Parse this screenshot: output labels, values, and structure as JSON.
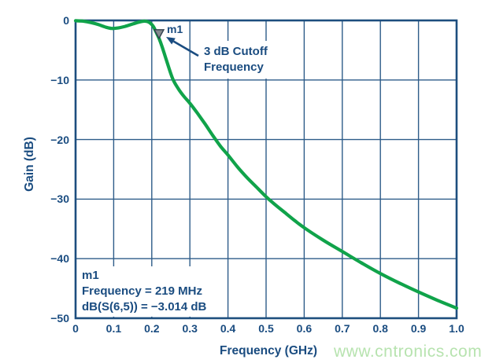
{
  "watermark": {
    "text": "www.cntronics.com",
    "color": "#b7e3af"
  },
  "colors": {
    "axis_text": "#1a4c80",
    "grid": "#2e5c89",
    "border": "#1d4e7e",
    "curve": "#10a34a",
    "marker_fill": "#85898e",
    "marker_stroke": "#30404f",
    "arrow": "#1a4c80",
    "annotation_bg": "#ffffff"
  },
  "chart_data": {
    "type": "line",
    "title": "",
    "xlabel": "Frequency (GHz)",
    "ylabel": "Gain (dB)",
    "xlim": [
      0,
      1
    ],
    "ylim": [
      -50,
      0
    ],
    "grid": true,
    "legend": "none",
    "x_tick_values": [
      0,
      0.1,
      0.2,
      0.3,
      0.4,
      0.5,
      0.6,
      0.7,
      0.8,
      0.9,
      1.0
    ],
    "x_tick_labels": [
      "0",
      "0.1",
      "0.2",
      "0.3",
      "0.4",
      "0.5",
      "0.6",
      "0.7",
      "0.8",
      "0.9",
      "1.0"
    ],
    "y_tick_values": [
      0,
      -10,
      -20,
      -30,
      -40,
      -50
    ],
    "y_tick_labels": [
      "0",
      "−10",
      "−20",
      "−30",
      "−40",
      "−50"
    ],
    "series": [
      {
        "name": "dB(S(6,5))",
        "color": "#10a34a",
        "points": [
          [
            0.0,
            -0.05
          ],
          [
            0.02,
            -0.12
          ],
          [
            0.04,
            -0.35
          ],
          [
            0.06,
            -0.7
          ],
          [
            0.08,
            -1.15
          ],
          [
            0.095,
            -1.35
          ],
          [
            0.11,
            -1.28
          ],
          [
            0.13,
            -1.0
          ],
          [
            0.15,
            -0.6
          ],
          [
            0.165,
            -0.3
          ],
          [
            0.178,
            -0.13
          ],
          [
            0.188,
            -0.18
          ],
          [
            0.196,
            -0.45
          ],
          [
            0.204,
            -1.0
          ],
          [
            0.211,
            -1.9
          ],
          [
            0.219,
            -3.014
          ],
          [
            0.227,
            -4.4
          ],
          [
            0.24,
            -7.0
          ],
          [
            0.255,
            -9.8
          ],
          [
            0.27,
            -11.5
          ],
          [
            0.285,
            -12.8
          ],
          [
            0.3,
            -13.9
          ],
          [
            0.32,
            -15.6
          ],
          [
            0.34,
            -17.4
          ],
          [
            0.36,
            -19.3
          ],
          [
            0.38,
            -21.1
          ],
          [
            0.4,
            -22.6
          ],
          [
            0.425,
            -24.6
          ],
          [
            0.45,
            -26.4
          ],
          [
            0.475,
            -28.0
          ],
          [
            0.5,
            -29.6
          ],
          [
            0.525,
            -31.0
          ],
          [
            0.55,
            -32.3
          ],
          [
            0.575,
            -33.6
          ],
          [
            0.6,
            -34.8
          ],
          [
            0.65,
            -36.9
          ],
          [
            0.7,
            -38.8
          ],
          [
            0.75,
            -40.7
          ],
          [
            0.8,
            -42.5
          ],
          [
            0.85,
            -44.1
          ],
          [
            0.9,
            -45.6
          ],
          [
            0.95,
            -47.0
          ],
          [
            1.0,
            -48.3
          ]
        ]
      }
    ],
    "marker": {
      "id": "m1",
      "label": "m1",
      "frequency_ghz": 0.219,
      "gain_db": -3.014
    },
    "annotations": {
      "cutoff": {
        "line1": "3 dB Cutoff",
        "line2": "Frequency"
      },
      "marker_info": {
        "line1": "m1",
        "line2": "Frequency = 219 MHz",
        "line3": "dB(S(6,5)) = −3.014 dB"
      }
    }
  }
}
